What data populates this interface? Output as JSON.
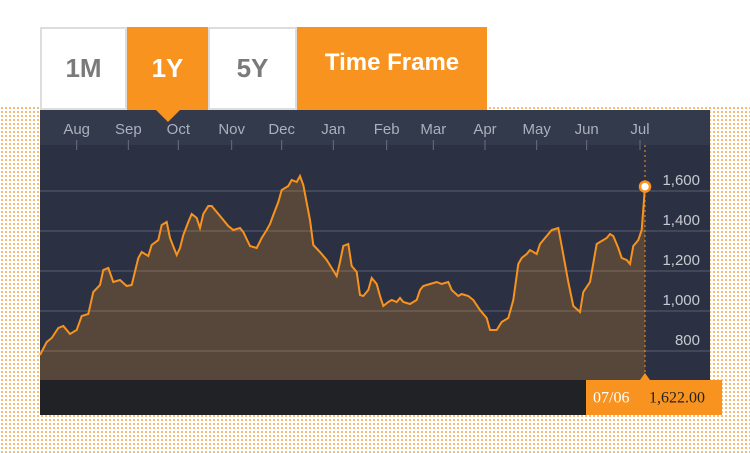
{
  "buttons": [
    "1M",
    "1Y",
    "5Y"
  ],
  "selected": 1,
  "time_frame_label": "Time Frame",
  "chart_data": {
    "type": "line",
    "color": "#f7931e",
    "grid": true,
    "x": [
      0,
      4,
      7,
      11,
      14,
      18,
      22,
      25,
      29,
      32,
      36,
      38,
      41,
      44,
      48,
      52,
      55,
      59,
      61,
      65,
      67,
      71,
      73,
      76,
      78,
      82,
      84,
      86,
      89,
      91,
      94,
      96,
      98,
      101,
      103,
      106,
      109,
      113,
      116,
      120,
      122,
      126,
      130,
      133,
      136,
      138,
      140,
      143,
      145,
      149,
      151,
      154,
      156,
      158,
      162,
      164,
      168,
      172,
      175,
      178,
      180,
      182,
      185,
      187,
      190,
      192,
      194,
      197,
      199,
      202,
      204,
      206,
      209,
      211,
      214,
      216,
      218,
      222,
      226,
      228,
      230,
      234,
      238,
      241,
      245,
      247,
      251,
      253,
      257,
      260,
      264,
      268,
      270,
      274,
      277,
      281,
      284,
      287,
      289,
      292,
      294,
      298,
      300,
      304,
      307,
      311,
      313,
      317,
      320,
      324,
      326,
      330,
      334,
      336,
      340,
      342,
      344,
      347,
      349,
      352,
      354,
      356,
      359,
      361,
      363
    ],
    "values": [
      780,
      845,
      865,
      915,
      925,
      885,
      905,
      975,
      985,
      1095,
      1130,
      1205,
      1215,
      1145,
      1155,
      1125,
      1130,
      1265,
      1295,
      1275,
      1330,
      1355,
      1430,
      1445,
      1365,
      1280,
      1315,
      1380,
      1445,
      1485,
      1465,
      1415,
      1485,
      1525,
      1525,
      1495,
      1465,
      1425,
      1405,
      1415,
      1395,
      1325,
      1315,
      1365,
      1405,
      1435,
      1480,
      1545,
      1605,
      1625,
      1655,
      1645,
      1675,
      1630,
      1455,
      1330,
      1295,
      1255,
      1215,
      1175,
      1245,
      1325,
      1335,
      1225,
      1195,
      1080,
      1075,
      1105,
      1165,
      1135,
      1075,
      1025,
      1045,
      1055,
      1045,
      1065,
      1045,
      1035,
      1055,
      1105,
      1125,
      1135,
      1145,
      1135,
      1145,
      1105,
      1075,
      1085,
      1075,
      1055,
      1005,
      965,
      905,
      905,
      945,
      965,
      1055,
      1235,
      1265,
      1285,
      1305,
      1285,
      1335,
      1375,
      1405,
      1415,
      1325,
      1145,
      1025,
      995,
      1095,
      1145,
      1335,
      1345,
      1365,
      1385,
      1375,
      1315,
      1265,
      1255,
      1235,
      1325,
      1355,
      1405,
      1622
    ],
    "xlim": [
      0,
      402
    ],
    "xticks": [
      {
        "value": 22,
        "label": "Aug"
      },
      {
        "value": 53,
        "label": "Sep"
      },
      {
        "value": 83,
        "label": "Oct"
      },
      {
        "value": 115,
        "label": "Nov"
      },
      {
        "value": 145,
        "label": "Dec"
      },
      {
        "value": 176,
        "label": "Jan"
      },
      {
        "value": 208,
        "label": "Feb"
      },
      {
        "value": 236,
        "label": "Mar"
      },
      {
        "value": 267,
        "label": "Apr"
      },
      {
        "value": 298,
        "label": "May"
      },
      {
        "value": 328,
        "label": "Jun"
      },
      {
        "value": 360,
        "label": "Jul"
      }
    ],
    "ylim": [
      655,
      1830
    ],
    "yticks": [
      800,
      {
        "value": 1000,
        "label": "1,000"
      },
      {
        "value": 1200,
        "label": "1,200"
      },
      {
        "value": 1400,
        "label": "1,400"
      },
      {
        "value": 1600,
        "label": "1,600"
      }
    ],
    "tooltip": {
      "date": "07/06",
      "label": "1,622.00"
    }
  }
}
